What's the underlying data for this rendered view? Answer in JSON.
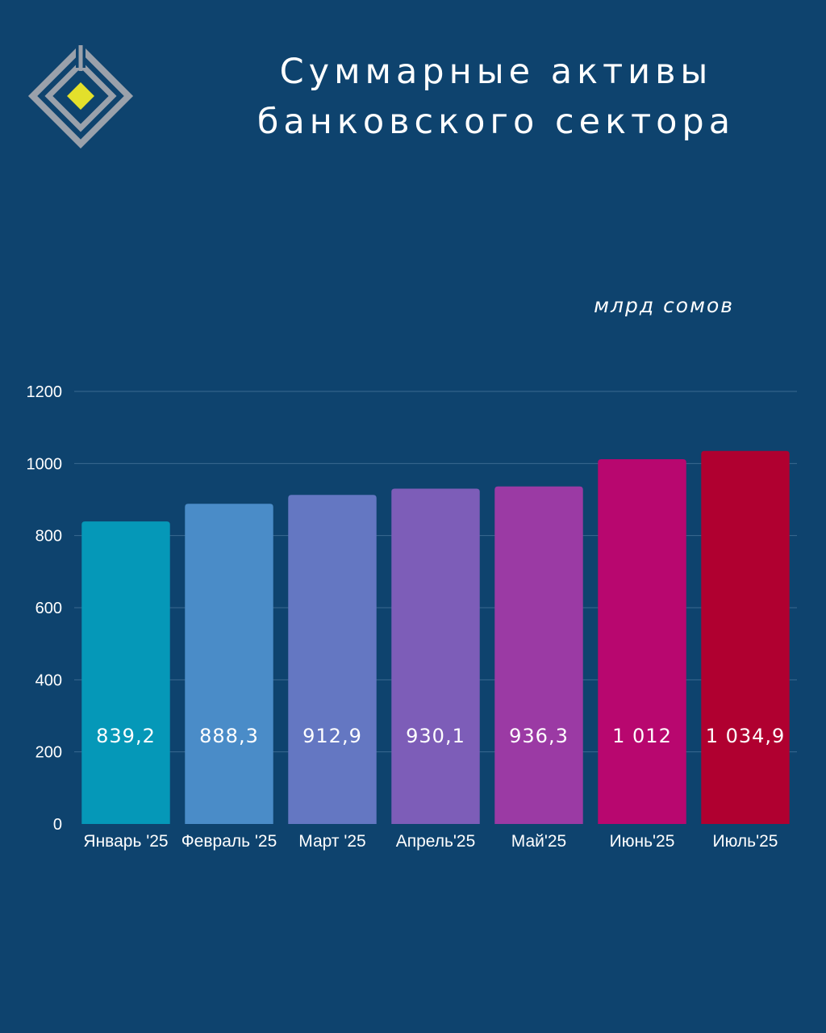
{
  "header": {
    "title_line1": "Суммарные активы",
    "title_line2": "банковского сектора",
    "unit": "млрд сомов"
  },
  "logo": {
    "icon": "diamond-logo-icon",
    "accent": "#e3e02b",
    "frame": "#9aa1ab"
  },
  "colors": {
    "background": "#0e436e",
    "gridline": "#3a6890"
  },
  "chart_data": {
    "type": "bar",
    "title": "",
    "xlabel": "",
    "ylabel": "",
    "ylim": [
      0,
      1200
    ],
    "yticks": [
      0,
      200,
      400,
      600,
      800,
      1000,
      1200
    ],
    "grid": true,
    "categories": [
      "Январь '25",
      "Февраль '25",
      "Март '25",
      "Апрель'25",
      "Май'25",
      "Июнь'25",
      "Июль'25"
    ],
    "values": [
      839.2,
      888.3,
      912.9,
      930.1,
      936.3,
      1012,
      1034.9
    ],
    "data_labels": [
      "839,2",
      "888,3",
      "912,9",
      "930,1",
      "936,3",
      "1 012",
      "1 034,9"
    ],
    "bar_colors": [
      "#0598b8",
      "#4a8cc8",
      "#6477c2",
      "#7d5db8",
      "#9b3aa4",
      "#b8076f",
      "#b00030"
    ]
  }
}
